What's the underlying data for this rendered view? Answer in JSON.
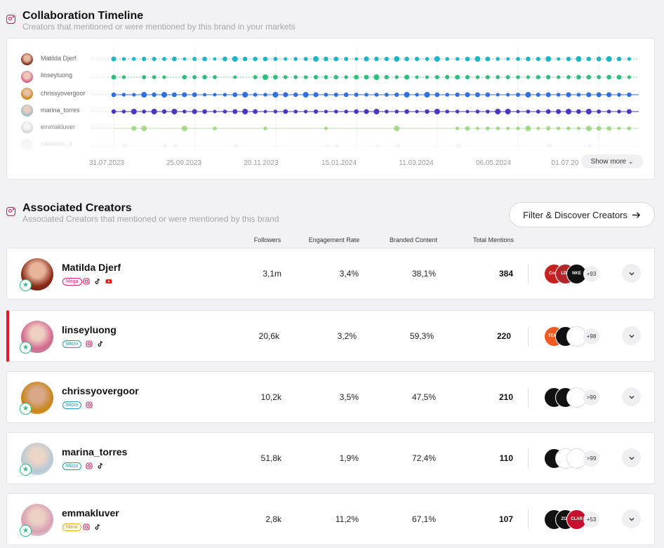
{
  "timeline": {
    "title": "Collaboration Timeline",
    "subtitle": "Creators that mentioned or were mentioned by this brand in your markets",
    "show_more_label": "Show more",
    "x_ticks": [
      "31.07.2023",
      "25.09.2023",
      "20.11.2023",
      "15.01.2024",
      "11.03.2024",
      "06.05.2024",
      "01.07.20"
    ],
    "rows": [
      {
        "name": "Matilda Djerf",
        "color": "#1fb5c4"
      },
      {
        "name": "linseyluong",
        "color": "#2dc07a"
      },
      {
        "name": "chrissyovergoor",
        "color": "#2f6fe0"
      },
      {
        "name": "marina_torres",
        "color": "#4b36c2"
      },
      {
        "name": "emmakluver",
        "color": "#8bd06a"
      },
      {
        "name": "sanneee_d",
        "color": "#b8b2e8"
      }
    ]
  },
  "associated": {
    "title": "Associated Creators",
    "subtitle": "Associated Creators that mentioned or were mentioned by this brand",
    "filter_button_label": "Filter & Discover Creators",
    "columns": {
      "followers": "Followers",
      "engagement": "Engagement Rate",
      "branded": "Branded Content",
      "mentions": "Total Mentions"
    },
    "creators": [
      {
        "name": "Matilda Djerf",
        "tier": "Mega",
        "platforms": [
          "instagram-icon",
          "tiktok-icon",
          "youtube-icon"
        ],
        "followers": "3,1m",
        "engagement": "3,4%",
        "branded": "38,1%",
        "mentions": "384",
        "brand_more": "+93",
        "logos": [
          "#c7201f",
          "#b4252a",
          "#111111"
        ],
        "logo_texts": [
          "Coca",
          "LDN",
          "NKE"
        ]
      },
      {
        "name": "linseyluong",
        "tier": "Micro",
        "platforms": [
          "instagram-icon",
          "tiktok-icon"
        ],
        "followers": "20,6k",
        "engagement": "3,2%",
        "branded": "59,3%",
        "mentions": "220",
        "brand_more": "+98",
        "logos": [
          "#f05a22",
          "#111111",
          "#ffffff"
        ],
        "logo_texts": [
          "TEMU",
          "",
          ""
        ]
      },
      {
        "name": "chrissyovergoor",
        "tier": "Micro",
        "platforms": [
          "instagram-icon"
        ],
        "followers": "10,2k",
        "engagement": "3,5%",
        "branded": "47,5%",
        "mentions": "210",
        "brand_more": ">99",
        "logos": [
          "#111111",
          "#111111",
          "#ffffff"
        ],
        "logo_texts": [
          "",
          "",
          ""
        ]
      },
      {
        "name": "marina_torres",
        "tier": "Micro",
        "platforms": [
          "instagram-icon",
          "tiktok-icon"
        ],
        "followers": "51,8k",
        "engagement": "1,9%",
        "branded": "72,4%",
        "mentions": "110",
        "brand_more": ">99",
        "logos": [
          "#111111",
          "#ffffff",
          "#ffffff"
        ],
        "logo_texts": [
          "",
          "",
          ""
        ]
      },
      {
        "name": "emmakluver",
        "tier": "Nano",
        "platforms": [
          "instagram-icon",
          "tiktok-icon"
        ],
        "followers": "2,8k",
        "engagement": "11,2%",
        "branded": "67,1%",
        "mentions": "107",
        "brand_more": "+53",
        "logos": [
          "#111111",
          "#111111",
          "#c8102e"
        ],
        "logo_texts": [
          "",
          "ZOS",
          "CLAR"
        ]
      }
    ]
  }
}
